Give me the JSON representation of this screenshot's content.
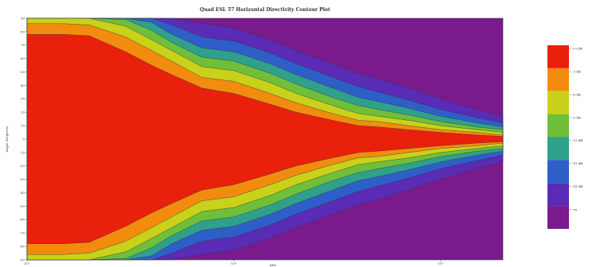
{
  "chart_data": {
    "type": "heatmap",
    "title": "Quad ESL 57 Horizontal Directivity Contour Plot",
    "xlabel": "kHz",
    "ylabel": "Angle (Degrees)",
    "x_scale": "log",
    "xlim_hz": [
      100,
      20000
    ],
    "x_ticks": [
      {
        "value": 100,
        "label": "10²"
      },
      {
        "value": 1000,
        "label": "10³"
      },
      {
        "value": 10000,
        "label": "10⁴"
      }
    ],
    "ylim": [
      -90,
      90
    ],
    "y_ticks": [
      {
        "value": 90,
        "label": "90"
      },
      {
        "value": 80,
        "label": "80"
      },
      {
        "value": 70,
        "label": "70"
      },
      {
        "value": 60,
        "label": "60"
      },
      {
        "value": 50,
        "label": "50"
      },
      {
        "value": 40,
        "label": "40"
      },
      {
        "value": 30,
        "label": "30"
      },
      {
        "value": 20,
        "label": "20"
      },
      {
        "value": 10,
        "label": "10"
      },
      {
        "value": 0,
        "label": "0"
      },
      {
        "value": -10,
        "label": "-10"
      },
      {
        "value": -20,
        "label": "-20"
      },
      {
        "value": -30,
        "label": "-30"
      },
      {
        "value": -40,
        "label": "-40"
      },
      {
        "value": -50,
        "label": "-50"
      },
      {
        "value": -60,
        "label": "-60"
      },
      {
        "value": -70,
        "label": "-70"
      },
      {
        "value": -80,
        "label": "-80"
      },
      {
        "value": -90,
        "label": "-90"
      }
    ],
    "contour_levels": [
      {
        "label": "+0 dB",
        "color": "#e8200c"
      },
      {
        "label": "-3 dB",
        "color": "#f28c0f"
      },
      {
        "label": "-6 dB",
        "color": "#c9d11a"
      },
      {
        "label": "-9 dB",
        "color": "#6fbf3a"
      },
      {
        "label": "-12 dB",
        "color": "#2fa08c"
      },
      {
        "label": "-15 dB",
        "color": "#2e5fc8"
      },
      {
        "label": "-18 dB",
        "color": "#5a2bb5"
      },
      {
        "label": "-oo",
        "color": "#7a1a8c"
      }
    ],
    "half_width_deg_by_level": [
      {
        "level": "+0 dB",
        "freq_hz": [
          100,
          150,
          200,
          300,
          400,
          500,
          700,
          1000,
          1500,
          2000,
          3000,
          4000,
          5000,
          7000,
          10000,
          15000,
          20000
        ],
        "half_width_deg": [
          78,
          78,
          77,
          65,
          55,
          48,
          38,
          34,
          26,
          20,
          14,
          10,
          9,
          7,
          5,
          3,
          2
        ]
      },
      {
        "level": "-3 dB",
        "freq_hz": [
          100,
          150,
          200,
          300,
          400,
          500,
          700,
          1000,
          1500,
          2000,
          3000,
          4000,
          5000,
          7000,
          10000,
          15000,
          20000
        ],
        "half_width_deg": [
          86,
          86,
          85,
          76,
          66,
          58,
          46,
          43,
          34,
          27,
          19,
          14,
          13,
          10,
          7,
          5,
          3
        ]
      },
      {
        "level": "-6 dB",
        "freq_hz": [
          100,
          150,
          200,
          300,
          400,
          500,
          700,
          1000,
          1500,
          2000,
          3000,
          4000,
          5000,
          7000,
          10000,
          15000,
          20000
        ],
        "half_width_deg": [
          90,
          90,
          90,
          84,
          74,
          66,
          54,
          51,
          42,
          34,
          25,
          19,
          17,
          14,
          10,
          7,
          5
        ]
      },
      {
        "level": "-9 dB",
        "freq_hz": [
          100,
          150,
          200,
          300,
          400,
          500,
          700,
          1000,
          1500,
          2000,
          3000,
          4000,
          5000,
          7000,
          10000,
          15000,
          20000
        ],
        "half_width_deg": [
          90,
          90,
          90,
          89,
          81,
          72,
          61,
          58,
          49,
          41,
          31,
          25,
          22,
          18,
          13,
          9,
          7
        ]
      },
      {
        "level": "-12 dB",
        "freq_hz": [
          100,
          150,
          200,
          300,
          400,
          500,
          700,
          1000,
          1500,
          2000,
          3000,
          4000,
          5000,
          7000,
          10000,
          15000,
          20000
        ],
        "half_width_deg": [
          90,
          90,
          90,
          90,
          87,
          78,
          68,
          65,
          56,
          48,
          38,
          31,
          28,
          23,
          17,
          12,
          9
        ]
      },
      {
        "level": "-15 dB",
        "freq_hz": [
          100,
          150,
          200,
          300,
          400,
          500,
          700,
          1000,
          1500,
          2000,
          3000,
          4000,
          5000,
          7000,
          10000,
          15000,
          20000
        ],
        "half_width_deg": [
          90,
          90,
          90,
          90,
          90,
          85,
          76,
          73,
          64,
          56,
          46,
          39,
          35,
          29,
          22,
          16,
          12
        ]
      },
      {
        "level": "-18 dB",
        "freq_hz": [
          100,
          150,
          200,
          300,
          400,
          500,
          700,
          1000,
          1500,
          2000,
          3000,
          4000,
          5000,
          7000,
          10000,
          15000,
          20000
        ],
        "half_width_deg": [
          90,
          90,
          90,
          90,
          90,
          90,
          86,
          83,
          74,
          66,
          56,
          49,
          45,
          38,
          30,
          22,
          17
        ]
      }
    ]
  }
}
